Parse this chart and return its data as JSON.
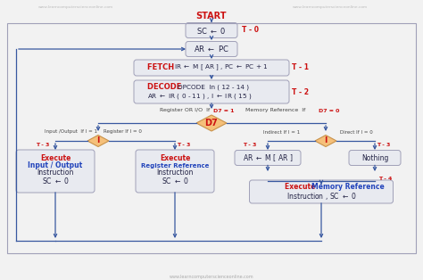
{
  "bg_color": "#f2f2f2",
  "box_fill": "#e8eaf0",
  "diamond_fill": "#f5c07a",
  "border_color": "#a0a0b8",
  "arrow_color": "#3858a0",
  "text_red": "#cc1111",
  "text_blue": "#2244bb",
  "text_dark": "#222244",
  "text_gray": "#aaaaaa",
  "watermark_top_left": "www.learncomputerscienceonline.com",
  "watermark_top_right": "www.learncomputerscienceonline.com",
  "watermark_bottom": "www.learncomputerscienceonline.com"
}
